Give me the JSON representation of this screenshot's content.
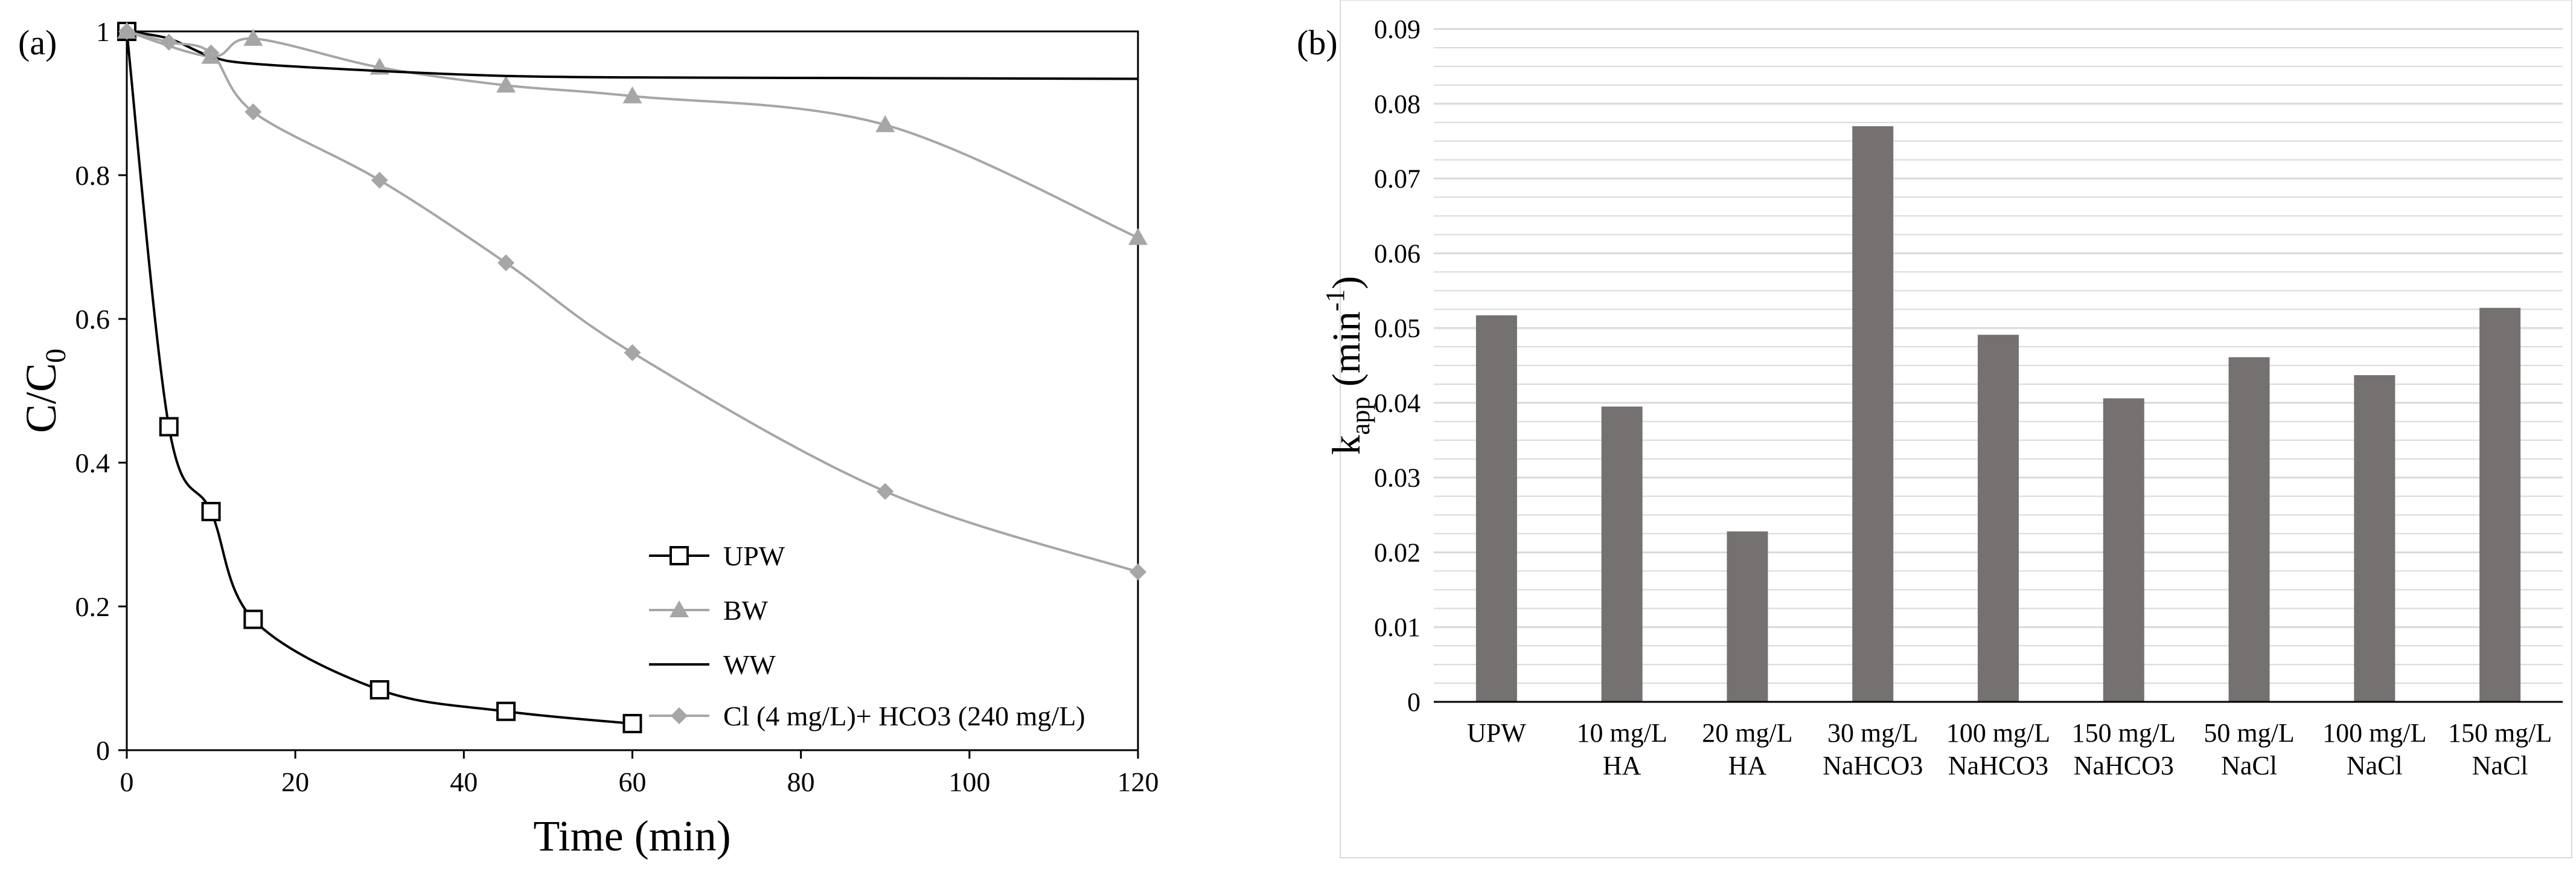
{
  "colors": {
    "axis": "#000000",
    "grid": "#d9d9d9",
    "upw": "#000000",
    "bw": "#a6a6a6",
    "ww": "#000000",
    "clhco3": "#a6a6a6",
    "bar": "#767171"
  },
  "chart_data": [
    {
      "type": "line",
      "panel_label": "(a)",
      "xlabel": "Time (min)",
      "ylabel": {
        "main": "C/C",
        "sub": "0"
      },
      "xlim": [
        0,
        120
      ],
      "ylim": [
        0,
        1
      ],
      "xticks": [
        0,
        20,
        40,
        60,
        80,
        100,
        120
      ],
      "yticks": [
        0,
        0.2,
        0.4,
        0.6,
        0.8,
        1
      ],
      "ytick_labels": [
        "0",
        "0.2",
        "0.4",
        "0.6",
        "0.8",
        "1"
      ],
      "series": [
        {
          "name": "UPW",
          "marker": "square-open",
          "color_key": "upw",
          "x": [
            0,
            5,
            10,
            15,
            30,
            45,
            60
          ],
          "y": [
            1,
            0.45,
            0.332,
            0.182,
            0.084,
            0.054,
            0.037
          ]
        },
        {
          "name": "BW",
          "marker": "triangle",
          "color_key": "bw",
          "x": [
            0,
            10,
            15,
            30,
            45,
            60,
            90,
            120
          ],
          "y": [
            1,
            0.965,
            0.99,
            0.95,
            0.925,
            0.91,
            0.87,
            0.713
          ]
        },
        {
          "name": "WW",
          "marker": "none",
          "color_key": "ww",
          "x": [
            0,
            5,
            10,
            15,
            30,
            45,
            60,
            90,
            120
          ],
          "y": [
            1,
            0.99,
            0.965,
            0.955,
            0.945,
            0.938,
            0.936,
            0.935,
            0.934
          ]
        },
        {
          "name": "Cl (4 mg/L)+ HCO3 (240 mg/L)",
          "marker": "diamond",
          "color_key": "clhco3",
          "x": [
            0,
            5,
            10,
            15,
            30,
            45,
            60,
            90,
            120
          ],
          "y": [
            1,
            0.985,
            0.97,
            0.888,
            0.793,
            0.678,
            0.553,
            0.36,
            0.248
          ]
        }
      ],
      "legend_position": "bottom-right"
    },
    {
      "type": "bar",
      "panel_label": "(b)",
      "ylabel": {
        "main": "k",
        "sub": "app",
        "unit_pre": " (min",
        "unit_sup": "-1",
        "unit_post": ")"
      },
      "ylim": [
        0,
        0.09
      ],
      "yticks": [
        0,
        0.01,
        0.02,
        0.03,
        0.04,
        0.05,
        0.06,
        0.07,
        0.08,
        0.09
      ],
      "ytick_labels": [
        "0",
        "0.01",
        "0.02",
        "0.03",
        "0.04",
        "0.05",
        "0.06",
        "0.07",
        "0.08",
        "0.09"
      ],
      "categories": [
        [
          "UPW"
        ],
        [
          "10 mg/L",
          "HA"
        ],
        [
          "20 mg/L",
          "HA"
        ],
        [
          "30 mg/L",
          "NaHCO3"
        ],
        [
          "100 mg/L",
          "NaHCO3"
        ],
        [
          "150 mg/L",
          "NaHCO3"
        ],
        [
          "50 mg/L",
          "NaCl"
        ],
        [
          "100 mg/L",
          "NaCl"
        ],
        [
          "150 mg/L",
          "NaCl"
        ]
      ],
      "values": [
        0.0517,
        0.0395,
        0.0228,
        0.077,
        0.0491,
        0.0406,
        0.0461,
        0.0437,
        0.0527
      ],
      "grid": true
    }
  ]
}
